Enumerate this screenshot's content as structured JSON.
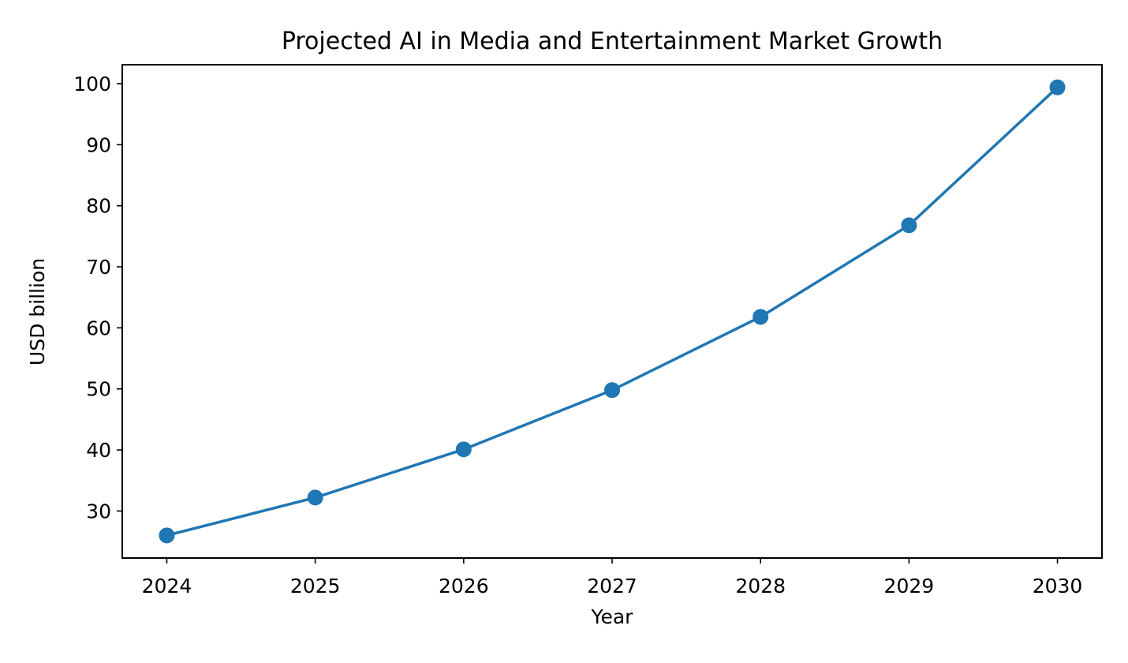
{
  "chart_data": {
    "type": "line",
    "title": "Projected AI in Media and Entertainment Market Growth",
    "xlabel": "Year",
    "ylabel": "USD billion",
    "x": [
      2024,
      2025,
      2026,
      2027,
      2028,
      2029,
      2030
    ],
    "series": [
      {
        "values": [
          26.0,
          32.2,
          40.1,
          49.8,
          61.8,
          76.8,
          99.4
        ],
        "color": "#1f77b4",
        "marker": "circle"
      }
    ],
    "x_ticks": [
      "2024",
      "2025",
      "2026",
      "2027",
      "2028",
      "2029",
      "2030"
    ],
    "y_ticks": [
      "30",
      "40",
      "50",
      "60",
      "70",
      "80",
      "90",
      "100"
    ],
    "xlim": [
      2023.7,
      2030.3
    ],
    "ylim": [
      22.3,
      103.1
    ],
    "grid": false,
    "legend": "none"
  }
}
